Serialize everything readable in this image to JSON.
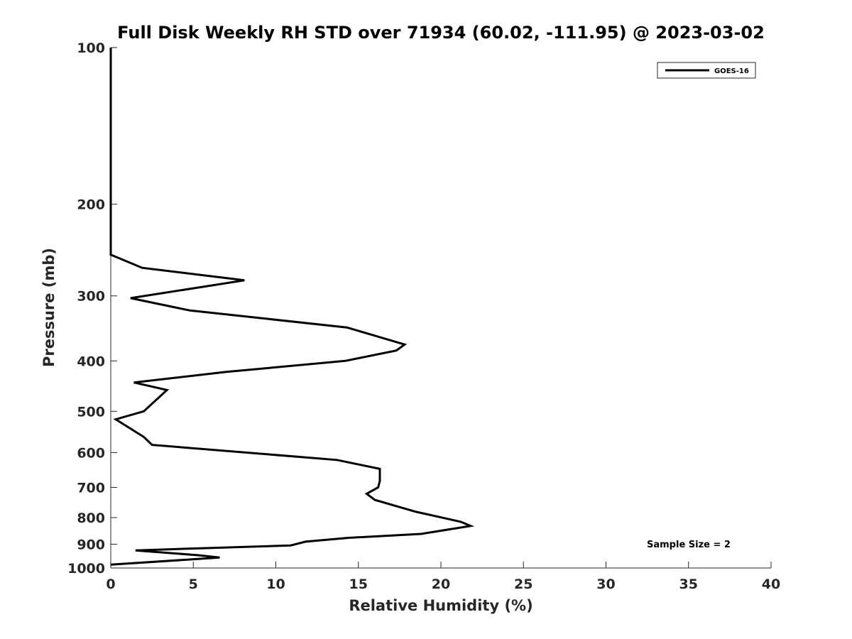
{
  "chart_data": {
    "type": "line",
    "title": "Full Disk Weekly RH STD over 71934 (60.02, -111.95) @ 2023-03-02",
    "xlabel": "Relative Humidity (%)",
    "ylabel": "Pressure (mb)",
    "xlim": [
      0,
      40
    ],
    "ylim": [
      100,
      1000
    ],
    "y_scale": "log",
    "y_reversed": true,
    "grid": false,
    "legend_position": "top-right",
    "x_ticks": [
      "0",
      "5",
      "10",
      "15",
      "20",
      "25",
      "30",
      "35",
      "40"
    ],
    "y_ticks": [
      "100",
      "200",
      "300",
      "400",
      "500",
      "600",
      "700",
      "800",
      "900",
      "1000"
    ],
    "annotation": "Sample Size = 2",
    "series": [
      {
        "name": "GOES-16",
        "color": "#000000",
        "points": [
          {
            "x": 0.0,
            "y": 100
          },
          {
            "x": 0.0,
            "y": 150
          },
          {
            "x": 0.0,
            "y": 200
          },
          {
            "x": 0.0,
            "y": 250
          },
          {
            "x": 1.9,
            "y": 265
          },
          {
            "x": 8.1,
            "y": 280
          },
          {
            "x": 1.2,
            "y": 303
          },
          {
            "x": 4.8,
            "y": 320
          },
          {
            "x": 14.3,
            "y": 345
          },
          {
            "x": 17.8,
            "y": 372
          },
          {
            "x": 17.3,
            "y": 382
          },
          {
            "x": 14.2,
            "y": 400
          },
          {
            "x": 7.0,
            "y": 420
          },
          {
            "x": 1.4,
            "y": 440
          },
          {
            "x": 3.4,
            "y": 455
          },
          {
            "x": 2.0,
            "y": 500
          },
          {
            "x": 0.3,
            "y": 518
          },
          {
            "x": 2.0,
            "y": 560
          },
          {
            "x": 2.5,
            "y": 580
          },
          {
            "x": 13.7,
            "y": 620
          },
          {
            "x": 16.3,
            "y": 645
          },
          {
            "x": 16.3,
            "y": 680
          },
          {
            "x": 16.2,
            "y": 700
          },
          {
            "x": 15.5,
            "y": 720
          },
          {
            "x": 16.0,
            "y": 740
          },
          {
            "x": 18.5,
            "y": 780
          },
          {
            "x": 21.2,
            "y": 815
          },
          {
            "x": 21.8,
            "y": 830
          },
          {
            "x": 18.8,
            "y": 860
          },
          {
            "x": 14.4,
            "y": 875
          },
          {
            "x": 11.8,
            "y": 890
          },
          {
            "x": 10.9,
            "y": 905
          },
          {
            "x": 1.5,
            "y": 925
          },
          {
            "x": 5.3,
            "y": 945
          },
          {
            "x": 6.6,
            "y": 955
          },
          {
            "x": 0.0,
            "y": 985
          }
        ]
      }
    ]
  }
}
